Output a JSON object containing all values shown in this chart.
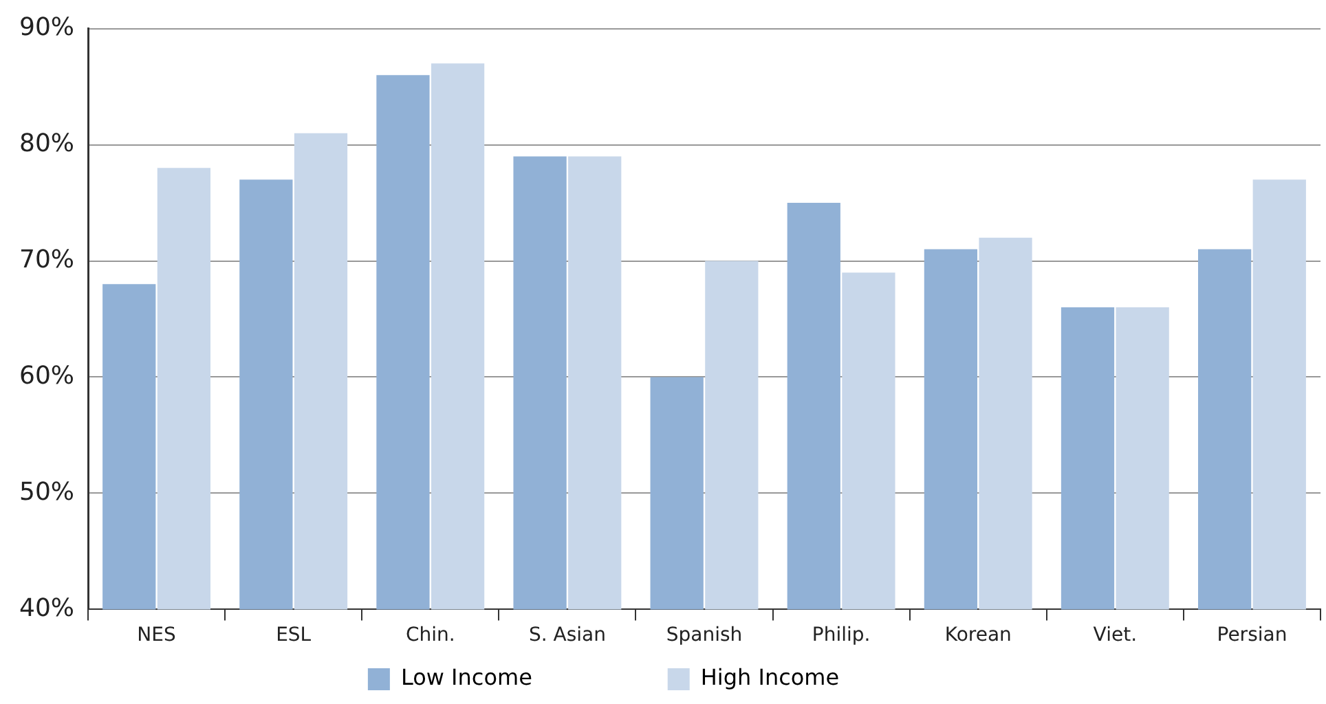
{
  "chart_data": {
    "type": "bar",
    "categories": [
      "NES",
      "ESL",
      "Chin.",
      "S. Asian",
      "Spanish",
      "Philip.",
      "Korean",
      "Viet.",
      "Persian"
    ],
    "series": [
      {
        "name": "Low Income",
        "color": "#91b1d6",
        "values": [
          68,
          77,
          86,
          79,
          60,
          75,
          71,
          66,
          71
        ]
      },
      {
        "name": "High Income",
        "color": "#c8d7ea",
        "values": [
          78,
          81,
          87,
          79,
          70,
          69,
          72,
          66,
          77
        ]
      }
    ],
    "ylim": [
      40,
      90
    ],
    "yticks": [
      {
        "value": 40,
        "label": "40%"
      },
      {
        "value": 50,
        "label": "50%"
      },
      {
        "value": 60,
        "label": "60%"
      },
      {
        "value": 70,
        "label": "70%"
      },
      {
        "value": 80,
        "label": "80%"
      },
      {
        "value": 90,
        "label": "90%"
      }
    ],
    "grid": "y",
    "legend": "bottom"
  }
}
